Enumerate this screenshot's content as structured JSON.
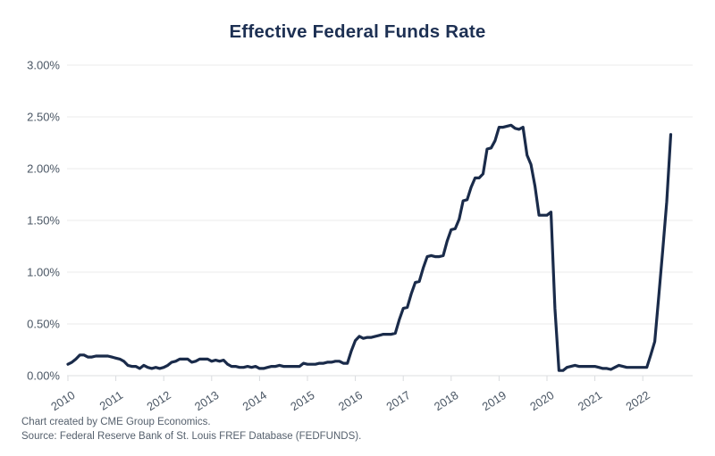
{
  "chart": {
    "title": "Effective Federal Funds Rate",
    "footer_line1": "Chart created by CME Group Economics.",
    "footer_line2": "Source: Federal Reserve Bank of St. Louis FREF Database (FEDFUNDS)."
  },
  "chart_data": {
    "type": "line",
    "title": "Effective Federal Funds Rate",
    "xlabel": "",
    "ylabel": "",
    "x_frequency": "monthly",
    "x_start_year": 2010,
    "x_start_month": 1,
    "x_tick_labels": [
      "2010",
      "2011",
      "2012",
      "2013",
      "2014",
      "2015",
      "2016",
      "2017",
      "2018",
      "2019",
      "2020",
      "2021",
      "2022"
    ],
    "y_tick_labels": [
      "0.00%",
      "0.50%",
      "1.00%",
      "1.50%",
      "2.00%",
      "2.50%",
      "3.00%"
    ],
    "ylim": [
      0,
      3
    ],
    "grid": "horizontal",
    "legend": "none",
    "series": [
      {
        "name": "FEDFUNDS",
        "values": [
          0.11,
          0.13,
          0.16,
          0.2,
          0.2,
          0.18,
          0.18,
          0.19,
          0.19,
          0.19,
          0.19,
          0.18,
          0.17,
          0.16,
          0.14,
          0.1,
          0.09,
          0.09,
          0.07,
          0.1,
          0.08,
          0.07,
          0.08,
          0.07,
          0.08,
          0.1,
          0.13,
          0.14,
          0.16,
          0.16,
          0.16,
          0.13,
          0.14,
          0.16,
          0.16,
          0.16,
          0.14,
          0.15,
          0.14,
          0.15,
          0.11,
          0.09,
          0.09,
          0.08,
          0.08,
          0.09,
          0.08,
          0.09,
          0.07,
          0.07,
          0.08,
          0.09,
          0.09,
          0.1,
          0.09,
          0.09,
          0.09,
          0.09,
          0.09,
          0.12,
          0.11,
          0.11,
          0.11,
          0.12,
          0.12,
          0.13,
          0.13,
          0.14,
          0.14,
          0.12,
          0.12,
          0.24,
          0.34,
          0.38,
          0.36,
          0.37,
          0.37,
          0.38,
          0.39,
          0.4,
          0.4,
          0.4,
          0.41,
          0.54,
          0.65,
          0.66,
          0.79,
          0.9,
          0.91,
          1.04,
          1.15,
          1.16,
          1.15,
          1.15,
          1.16,
          1.3,
          1.41,
          1.42,
          1.51,
          1.69,
          1.7,
          1.82,
          1.91,
          1.91,
          1.95,
          2.19,
          2.2,
          2.27,
          2.4,
          2.4,
          2.41,
          2.42,
          2.39,
          2.38,
          2.4,
          2.13,
          2.04,
          1.83,
          1.55,
          1.55,
          1.55,
          1.58,
          0.65,
          0.05,
          0.05,
          0.08,
          0.09,
          0.1,
          0.09,
          0.09,
          0.09,
          0.09,
          0.09,
          0.08,
          0.07,
          0.07,
          0.06,
          0.08,
          0.1,
          0.09,
          0.08,
          0.08,
          0.08,
          0.08,
          0.08,
          0.08,
          0.2,
          0.33,
          0.77,
          1.21,
          1.68,
          2.33
        ]
      }
    ],
    "colors": {
      "line": "#1a2b4a",
      "title_text": "#1d3053",
      "axis_text": "#4b5765",
      "footer_text": "#55606d",
      "gridline": "#ebebeb",
      "baseline": "#dddfe2",
      "tick_mark": "#d8dbde",
      "background": "#ffffff"
    }
  }
}
